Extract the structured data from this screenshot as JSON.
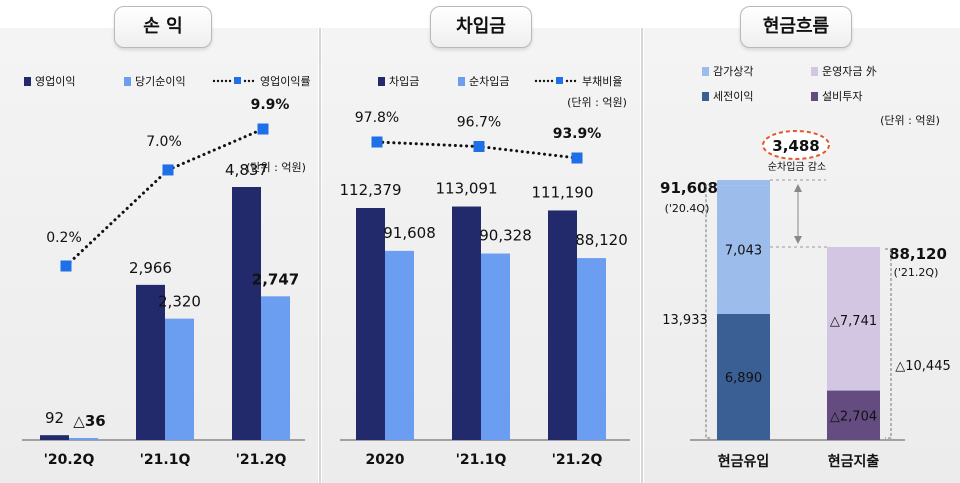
{
  "panels": {
    "profit_title": "손 익",
    "borrowing_title": "차입금",
    "cashflow_title": "현금흐름"
  },
  "chart_data": [
    {
      "type": "bar",
      "title": "손 익",
      "unit_label": "(단위 : 억원)",
      "categories": [
        "'20.2Q",
        "'21.1Q",
        "'21.2Q"
      ],
      "series": [
        {
          "name": "영업이익",
          "values": [
            92,
            2966,
            4837
          ],
          "labels": [
            "92",
            "2,966",
            "4,837"
          ],
          "color": "#232a6b"
        },
        {
          "name": "당기순이익",
          "values": [
            -36,
            2320,
            2747
          ],
          "labels": [
            "△36",
            "2,320",
            "2,747"
          ],
          "color": "#6b9ef0"
        }
      ],
      "line": {
        "name": "영업이익률",
        "values": [
          0.2,
          7.0,
          9.9
        ],
        "labels": [
          "0.2%",
          "7.0%",
          "9.9%"
        ],
        "color": "#1f6fe8"
      },
      "ylim": [
        0,
        5500
      ]
    },
    {
      "type": "bar",
      "title": "차입금",
      "unit_label": "(단위 : 억원)",
      "categories": [
        "2020",
        "'21.1Q",
        "'21.2Q"
      ],
      "series": [
        {
          "name": "차입금",
          "values": [
            112379,
            113091,
            111190
          ],
          "labels": [
            "112,379",
            "113,091",
            "111,190"
          ],
          "color": "#232a6b"
        },
        {
          "name": "순차입금",
          "values": [
            91608,
            90328,
            88120
          ],
          "labels": [
            "91,608",
            "90,328",
            "88,120"
          ],
          "color": "#6b9ef0"
        }
      ],
      "line": {
        "name": "부채비율",
        "values": [
          97.8,
          96.7,
          93.9
        ],
        "labels": [
          "97.8%",
          "96.7%",
          "93.9%"
        ],
        "color": "#1f6fe8"
      },
      "ylim": [
        0,
        160000
      ]
    },
    {
      "type": "bar",
      "title": "현금흐름",
      "unit_label": "(단위 : 억원)",
      "categories": [
        "현금유입",
        "현금지출"
      ],
      "legend": [
        {
          "name": "감가상각",
          "color": "#9cbcec"
        },
        {
          "name": "운영자금 外",
          "color": "#d3c6e3"
        },
        {
          "name": "세전이익",
          "color": "#3a5f95"
        },
        {
          "name": "설비투자",
          "color": "#644b80"
        }
      ],
      "inflow": {
        "segments": [
          {
            "name": "세전이익",
            "value": 6890,
            "label": "6,890",
            "color": "#3a5f95"
          },
          {
            "name": "감가상각",
            "value": 7043,
            "label": "7,043",
            "color": "#9cbcec"
          }
        ],
        "subtotal_label": "13,933",
        "top_value": 91608,
        "top_label": "91,608",
        "top_sub": "('20.4Q)"
      },
      "outflow": {
        "segments": [
          {
            "name": "설비투자",
            "value": 2704,
            "label": "△2,704",
            "color": "#644b80"
          },
          {
            "name": "운영자금 外",
            "value": 7741,
            "label": "△7,741",
            "color": "#d3c6e3"
          }
        ],
        "subtotal_label": "△10,445",
        "top_value": 88120,
        "top_label": "88,120",
        "top_sub": "('21.2Q)"
      },
      "net_change": {
        "value": 3488,
        "label": "3,488",
        "caption": "순차입금 감소"
      }
    }
  ]
}
